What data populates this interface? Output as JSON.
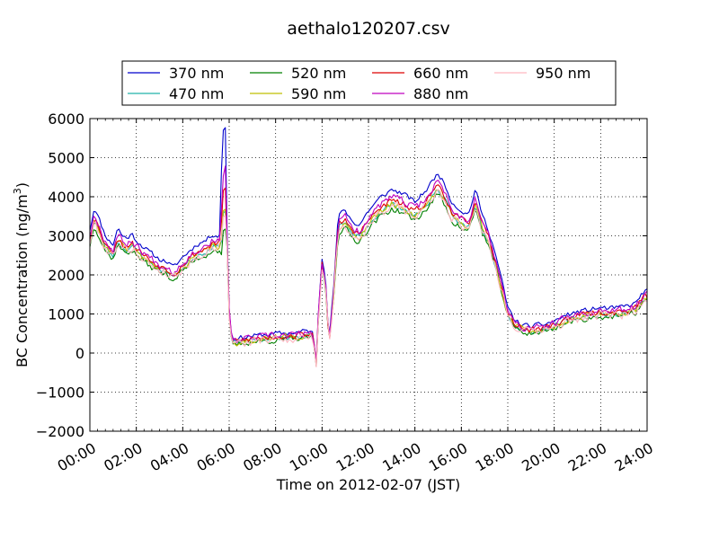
{
  "chart_data": {
    "type": "line",
    "title": "aethalo120207.csv",
    "xlabel": "Time on 2012-02-07 (JST)",
    "ylabel": "BC Concentration (ng/m³)",
    "ylabel_main": "BC Concentration (ng/m",
    "ylabel_sup": "3",
    "ylabel_end": ")",
    "xlim": [
      0,
      24
    ],
    "ylim": [
      -2000,
      6000
    ],
    "x_ticks": [
      0,
      2,
      4,
      6,
      8,
      10,
      12,
      14,
      16,
      18,
      20,
      22,
      24
    ],
    "x_tick_labels": [
      "00:00",
      "02:00",
      "04:00",
      "06:00",
      "08:00",
      "10:00",
      "12:00",
      "14:00",
      "16:00",
      "18:00",
      "20:00",
      "22:00",
      "24:00"
    ],
    "y_ticks": [
      -2000,
      -1000,
      0,
      1000,
      2000,
      3000,
      4000,
      5000,
      6000
    ],
    "y_tick_labels": [
      "−2000",
      "−1000",
      "0",
      "1000",
      "2000",
      "3000",
      "4000",
      "5000",
      "6000"
    ],
    "grid": true,
    "legend_position": "top-center",
    "base_profile": {
      "x": [
        0.0,
        0.2,
        0.4,
        0.6,
        0.8,
        1.0,
        1.2,
        1.4,
        1.6,
        1.8,
        2.0,
        2.3,
        2.6,
        3.0,
        3.3,
        3.6,
        4.0,
        4.3,
        4.6,
        5.0,
        5.3,
        5.5,
        5.65,
        5.8,
        5.9,
        6.0,
        6.1,
        6.3,
        6.6,
        7.0,
        7.5,
        8.0,
        8.5,
        9.0,
        9.4,
        9.6,
        9.75,
        9.85,
        10.0,
        10.15,
        10.3,
        10.5,
        10.7,
        11.0,
        11.3,
        11.6,
        12.0,
        12.5,
        13.0,
        13.5,
        14.0,
        14.5,
        15.0,
        15.3,
        15.6,
        16.0,
        16.3,
        16.6,
        16.9,
        17.2,
        17.5,
        17.8,
        18.0,
        18.3,
        18.6,
        19.0,
        19.5,
        20.0,
        20.5,
        21.0,
        21.5,
        22.0,
        22.5,
        23.0,
        23.5,
        23.8,
        24.0
      ],
      "y": [
        2850,
        3400,
        3100,
        2800,
        2600,
        2500,
        2900,
        2700,
        2650,
        2750,
        2600,
        2450,
        2300,
        2150,
        2100,
        1950,
        2200,
        2350,
        2500,
        2600,
        2750,
        2700,
        2800,
        4000,
        3000,
        1000,
        300,
        260,
        300,
        330,
        360,
        380,
        400,
        420,
        460,
        400,
        -300,
        1000,
        2200,
        1800,
        200,
        1500,
        3200,
        3300,
        3050,
        2950,
        3300,
        3600,
        3800,
        3700,
        3500,
        3800,
        4200,
        3900,
        3500,
        3300,
        3200,
        3800,
        3200,
        2800,
        2200,
        1500,
        1000,
        700,
        600,
        550,
        600,
        680,
        820,
        900,
        950,
        1000,
        980,
        1020,
        1100,
        1350,
        1400
      ]
    },
    "series": [
      {
        "name": "370 nm",
        "color": "#0000cc",
        "scale": 1.08,
        "offset": 80,
        "noise": 90,
        "seed": 11
      },
      {
        "name": "470 nm",
        "color": "#20b2aa",
        "scale": 1.0,
        "offset": 0,
        "noise": 100,
        "seed": 23
      },
      {
        "name": "520 nm",
        "color": "#008000",
        "scale": 0.98,
        "offset": -40,
        "noise": 110,
        "seed": 37
      },
      {
        "name": "590 nm",
        "color": "#bfbf00",
        "scale": 1.0,
        "offset": 10,
        "noise": 115,
        "seed": 41
      },
      {
        "name": "660 nm",
        "color": "#dd0000",
        "scale": 1.02,
        "offset": 30,
        "noise": 120,
        "seed": 53
      },
      {
        "name": "880 nm",
        "color": "#bf00bf",
        "scale": 1.04,
        "offset": 40,
        "noise": 140,
        "seed": 67
      },
      {
        "name": "950 nm",
        "color": "#ffb6c1",
        "scale": 1.0,
        "offset": -30,
        "noise": 170,
        "seed": 79
      }
    ]
  }
}
